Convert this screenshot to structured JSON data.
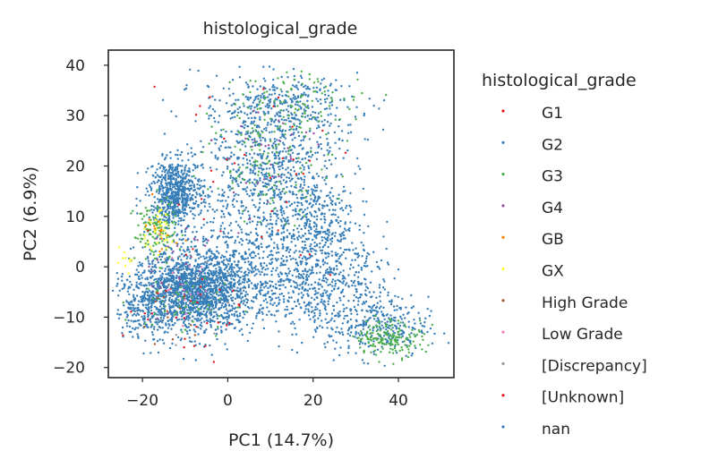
{
  "chart_data": {
    "type": "scatter",
    "title": "histological_grade",
    "xlabel": "PC1 (14.7%)",
    "ylabel": "PC2 (6.9%)",
    "xlim": [
      -28,
      53
    ],
    "ylim": [
      -22,
      43
    ],
    "xticks": [
      -20,
      0,
      20,
      40
    ],
    "yticks": [
      -20,
      -10,
      0,
      10,
      20,
      30,
      40
    ],
    "xtick_labels": [
      "−20",
      "0",
      "20",
      "40"
    ],
    "ytick_labels": [
      "−20",
      "−10",
      "0",
      "10",
      "20",
      "30",
      "40"
    ],
    "grid": false,
    "legend": {
      "title": "histological_grade",
      "placement": "outside-right",
      "entries": [
        {
          "name": "G1",
          "color": "#e41a1c"
        },
        {
          "name": "G2",
          "color": "#377eb8"
        },
        {
          "name": "G3",
          "color": "#4daf4a"
        },
        {
          "name": "G4",
          "color": "#984ea3"
        },
        {
          "name": "GB",
          "color": "#ff7f00"
        },
        {
          "name": "GX",
          "color": "#ffff33"
        },
        {
          "name": "High Grade",
          "color": "#a65628"
        },
        {
          "name": "Low Grade",
          "color": "#f781bf"
        },
        {
          "name": "[Discrepancy]",
          "color": "#999999"
        },
        {
          "name": "[Unknown]",
          "color": "#e41a1c"
        },
        {
          "name": "nan",
          "color": "#377eb8"
        }
      ]
    },
    "clusters": [
      {
        "series": "nan",
        "count": 1400,
        "cx": -8,
        "cy": -5,
        "sx": 7,
        "sy": 4
      },
      {
        "series": "nan",
        "count": 500,
        "cx": -12,
        "cy": 15,
        "sx": 3,
        "sy": 3
      },
      {
        "series": "nan",
        "count": 450,
        "cx": 10,
        "cy": 20,
        "sx": 8,
        "sy": 6
      },
      {
        "series": "nan",
        "count": 350,
        "cx": 12,
        "cy": 32,
        "sx": 9,
        "sy": 3
      },
      {
        "series": "nan",
        "count": 500,
        "cx": 20,
        "cy": -3,
        "sx": 9,
        "sy": 5
      },
      {
        "series": "nan",
        "count": 300,
        "cx": 35,
        "cy": -12,
        "sx": 6,
        "sy": 3
      },
      {
        "series": "nan",
        "count": 400,
        "cx": 5,
        "cy": 5,
        "sx": 10,
        "sy": 6
      },
      {
        "series": "nan",
        "count": 250,
        "cx": 20,
        "cy": 10,
        "sx": 5,
        "sy": 4
      },
      {
        "series": "nan",
        "count": 150,
        "cx": -20,
        "cy": -8,
        "sx": 3,
        "sy": 3
      },
      {
        "series": "G2",
        "count": 400,
        "cx": -8,
        "cy": -5,
        "sx": 7,
        "sy": 4
      },
      {
        "series": "G2",
        "count": 150,
        "cx": -13,
        "cy": 14,
        "sx": 3,
        "sy": 3
      },
      {
        "series": "G2",
        "count": 150,
        "cx": 10,
        "cy": 20,
        "sx": 8,
        "sy": 6
      },
      {
        "series": "G2",
        "count": 150,
        "cx": 20,
        "cy": -3,
        "sx": 9,
        "sy": 5
      },
      {
        "series": "G3",
        "count": 120,
        "cx": -17,
        "cy": 7,
        "sx": 2.5,
        "sy": 3
      },
      {
        "series": "G3",
        "count": 140,
        "cx": 10,
        "cy": 22,
        "sx": 7,
        "sy": 6
      },
      {
        "series": "G3",
        "count": 70,
        "cx": 18,
        "cy": 33,
        "sx": 8,
        "sy": 3
      },
      {
        "series": "G3",
        "count": 160,
        "cx": 38,
        "cy": -14,
        "sx": 4,
        "sy": 1.8
      },
      {
        "series": "G3",
        "count": 50,
        "cx": -10,
        "cy": -8,
        "sx": 6,
        "sy": 3
      },
      {
        "series": "G1",
        "count": 35,
        "cx": 5,
        "cy": 20,
        "sx": 12,
        "sy": 10
      },
      {
        "series": "[Unknown]",
        "count": 30,
        "cx": -10,
        "cy": -8,
        "sx": 7,
        "sy": 5
      },
      {
        "series": "G4",
        "count": 30,
        "cx": 8,
        "cy": 22,
        "sx": 6,
        "sy": 6
      },
      {
        "series": "G4",
        "count": 25,
        "cx": -12,
        "cy": 0,
        "sx": 6,
        "sy": 5
      },
      {
        "series": "GX",
        "count": 40,
        "cx": -17,
        "cy": 7,
        "sx": 2,
        "sy": 2
      },
      {
        "series": "GX",
        "count": 10,
        "cx": -24,
        "cy": 1,
        "sx": 1,
        "sy": 1
      },
      {
        "series": "GB",
        "count": 15,
        "cx": -16,
        "cy": 6,
        "sx": 3,
        "sy": 3
      },
      {
        "series": "High Grade",
        "count": 15,
        "cx": -14,
        "cy": -10,
        "sx": 3,
        "sy": 3
      },
      {
        "series": "Low Grade",
        "count": 15,
        "cx": -12,
        "cy": -4,
        "sx": 4,
        "sy": 4
      },
      {
        "series": "[Discrepancy]",
        "count": 15,
        "cx": -10,
        "cy": -6,
        "sx": 5,
        "sy": 4
      }
    ]
  }
}
